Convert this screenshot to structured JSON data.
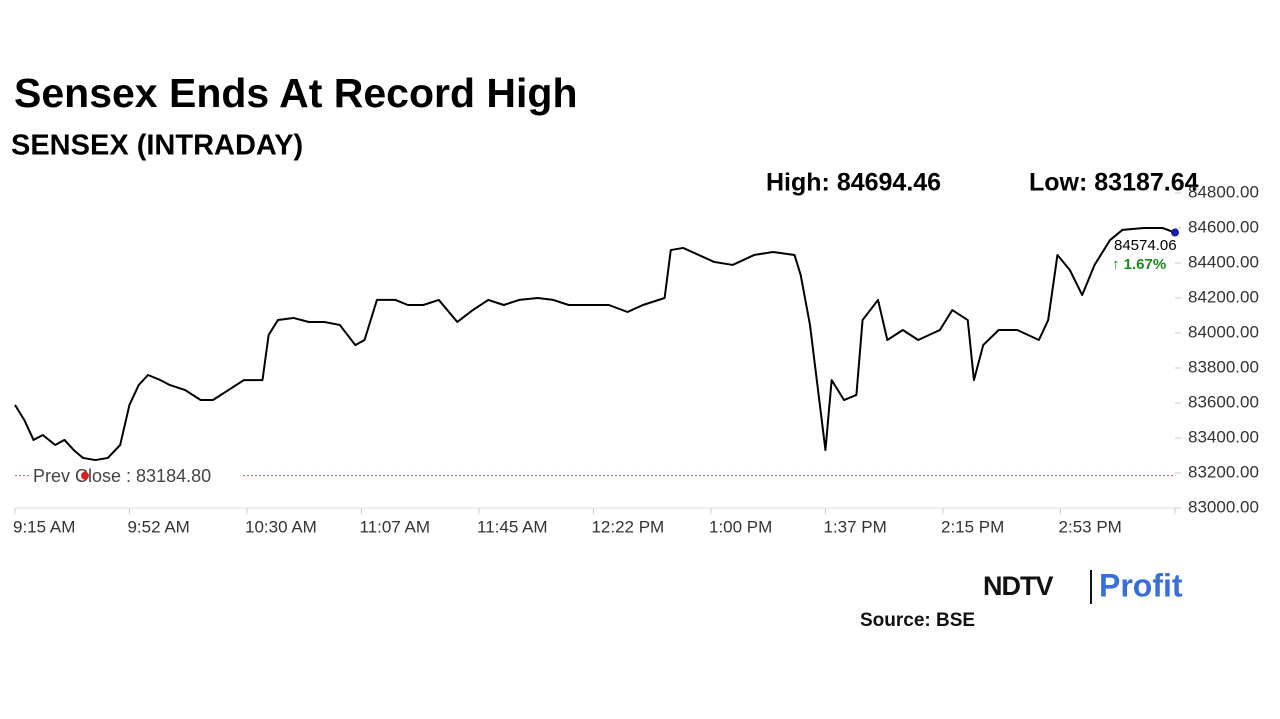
{
  "chart_data": {
    "type": "line",
    "title": "Sensex Ends At Record High",
    "subtitle": "SENSEX (INTRADAY)",
    "high": {
      "label": "High: 84694.46",
      "value": 84694.46
    },
    "low": {
      "label": "Low: 83187.64",
      "value": 83187.64
    },
    "prev_close": {
      "label": "Prev Close : 83184.80",
      "value": 83184.8
    },
    "last_label": "84574.06",
    "change_label": "↑ 1.67%",
    "source": "Source: BSE",
    "logo": {
      "left": "NDTV",
      "right": "Profit"
    },
    "xlim": [
      "9:15 AM",
      "3:30 PM"
    ],
    "xticks": [
      "9:15 AM",
      "9:52 AM",
      "10:30 AM",
      "11:07 AM",
      "11:45 AM",
      "12:22 PM",
      "1:00 PM",
      "1:37 PM",
      "2:15 PM",
      "2:53 PM"
    ],
    "ylim": [
      83000,
      84800
    ],
    "yticks": [
      {
        "value": 83000,
        "label": "83000.00"
      },
      {
        "value": 83200,
        "label": "83200.00"
      },
      {
        "value": 83400,
        "label": "83400.00"
      },
      {
        "value": 83600,
        "label": "83600.00"
      },
      {
        "value": 83800,
        "label": "83800.00"
      },
      {
        "value": 84000,
        "label": "84000.00"
      },
      {
        "value": 84200,
        "label": "84200.00"
      },
      {
        "value": 84400,
        "label": "84400.00"
      },
      {
        "value": 84600,
        "label": "84600.00"
      },
      {
        "value": 84800,
        "label": "84800.00"
      }
    ],
    "x": [
      "9:15 AM",
      "9:18 AM",
      "9:21 AM",
      "9:24 AM",
      "9:28 AM",
      "9:31 AM",
      "9:34 AM",
      "9:37 AM",
      "9:41 AM",
      "9:45 AM",
      "9:49 AM",
      "9:52 AM",
      "9:55 AM",
      "9:58 AM",
      "10:02 AM",
      "10:05 AM",
      "10:10 AM",
      "10:15 AM",
      "10:19 AM",
      "10:24 AM",
      "10:29 AM",
      "10:35 AM",
      "10:37 AM",
      "10:40 AM",
      "10:45 AM",
      "10:50 AM",
      "10:55 AM",
      "11:00 AM",
      "11:05 AM",
      "11:08 AM",
      "11:12 AM",
      "11:18 AM",
      "11:22 AM",
      "11:27 AM",
      "11:32 AM",
      "11:38 AM",
      "11:43 AM",
      "11:48 AM",
      "11:53 AM",
      "11:58 AM",
      "12:04 PM",
      "12:09 PM",
      "12:14 PM",
      "12:20 PM",
      "12:27 PM",
      "12:33 PM",
      "12:38 PM",
      "12:45 PM",
      "12:47 PM",
      "12:51 PM",
      "12:56 PM",
      "1:01 PM",
      "1:07 PM",
      "1:14 PM",
      "1:20 PM",
      "1:27 PM",
      "1:29 PM",
      "1:32 PM",
      "1:34 PM",
      "1:37 PM",
      "1:39 PM",
      "1:43 PM",
      "1:47 PM",
      "1:49 PM",
      "1:54 PM",
      "1:57 PM",
      "2:02 PM",
      "2:07 PM",
      "2:14 PM",
      "2:18 PM",
      "2:23 PM",
      "2:25 PM",
      "2:28 PM",
      "2:33 PM",
      "2:39 PM",
      "2:46 PM",
      "2:49 PM",
      "2:52 PM",
      "2:56 PM",
      "3:00 PM",
      "3:04 PM",
      "3:09 PM",
      "3:13 PM",
      "3:20 PM",
      "3:26 PM",
      "3:30 PM"
    ],
    "series": [
      {
        "name": "SENSEX",
        "color": "#000000",
        "values": [
          83589,
          83503,
          83389,
          83417,
          83360,
          83389,
          83331,
          83286,
          83274,
          83286,
          83360,
          83589,
          83703,
          83760,
          83731,
          83703,
          83674,
          83617,
          83617,
          83674,
          83731,
          83731,
          83989,
          84074,
          84086,
          84063,
          84063,
          84046,
          83931,
          83960,
          84189,
          84189,
          84160,
          84160,
          84189,
          84063,
          84131,
          84189,
          84160,
          84189,
          84200,
          84189,
          84160,
          84160,
          84160,
          84120,
          84160,
          84200,
          84474,
          84486,
          84446,
          84406,
          84389,
          84446,
          84463,
          84446,
          84331,
          84046,
          83760,
          83331,
          83731,
          83617,
          83646,
          84074,
          84189,
          83960,
          84017,
          83960,
          84017,
          84131,
          84074,
          83731,
          83931,
          84017,
          84017,
          83960,
          84074,
          84446,
          84360,
          84217,
          84389,
          84531,
          84589,
          84600,
          84600,
          84574.06
        ]
      }
    ]
  }
}
